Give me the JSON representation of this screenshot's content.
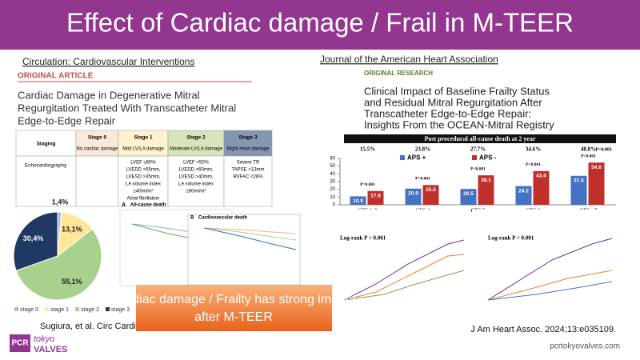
{
  "header": {
    "title": "Effect of Cardiac damage / Frail in M-TEER"
  },
  "left": {
    "journal": "Circulation: Cardiovascular Interventions",
    "tag": "ORIGINAL ARTICLE",
    "article_title": [
      "Cardiac Damage in Degenerative Mitral",
      "Regurgitation Treated With Transcatheter Mitral",
      "Edge-to-Edge Repair"
    ],
    "table": {
      "headers": [
        {
          "title": "Staging"
        },
        {
          "title": "Stage 0",
          "subtitle": "No cardiac damage"
        },
        {
          "title": "Stage 1",
          "subtitle": "Mild LV/LA damage"
        },
        {
          "title": "Stage 2",
          "subtitle": "Moderate LV/LA damage"
        },
        {
          "title": "Stage 3",
          "subtitle": "Right heart damage"
        }
      ],
      "rows": [
        {
          "label": "Echocardiography",
          "cells": {
            "1": [
              "LVEF ≤60%",
              "LVEDD >55mm,",
              "LVESD >35mm,",
              "LA volume index",
              "≥40ml/m²",
              "Atrial fibrillation"
            ],
            "2": [
              "LVEF <50%",
              "LVEDD >60mm,",
              "LVESD >40mm,",
              "LA volume index",
              "≥60ml/m²"
            ],
            "3": [
              "Severe TR",
              "TAPSE <13mm",
              "RVFAC <28%"
            ]
          }
        }
      ]
    },
    "km": {
      "a_letter": "A",
      "a_title": "All-cause death",
      "b_letter": "B",
      "b_title": "Cardiovascular death"
    },
    "citation": "Sugiura, et al. Circ Cardi"
  },
  "chart_data": [
    {
      "type": "pie",
      "categories": [
        "stage 0",
        "stage 1",
        "stage 2",
        "stage 3"
      ],
      "values": [
        1.4,
        13.1,
        55.1,
        30.4
      ],
      "value_labels": [
        "1,4%",
        "13,1%",
        "55,1%",
        "30,4%"
      ],
      "colors": [
        "#9dc3e6",
        "#ffe699",
        "#a9d18e",
        "#1f3864"
      ]
    },
    {
      "type": "bar",
      "title": "Post procedural all-cause death at 2 year",
      "categories": [
        "CFS 1-3",
        "CFS 4",
        "CFS 5",
        "CFS 6",
        "CFS ≥7"
      ],
      "series": [
        {
          "name": "APS +",
          "color": "#4472c4",
          "values": [
            10.9,
            20.9,
            20.5,
            24.2,
            37.5
          ]
        },
        {
          "name": "APS -",
          "color": "#c0302b",
          "values": [
            17.8,
            25.5,
            38.1,
            43.6,
            54.6
          ]
        }
      ],
      "group_labels": [
        "15.5%",
        "23.8%",
        "27.7%",
        "34.6%",
        "48.8%"
      ],
      "overall_p": "P<0.001",
      "p_labels": [
        "P=0.001",
        "P<0.001",
        "P<0.001",
        "P<0.001",
        "P<0.001"
      ],
      "ylim": [
        0,
        60
      ],
      "yticks": [
        0,
        10,
        20,
        30,
        40,
        50,
        60
      ]
    }
  ],
  "right": {
    "journal": "Journal of the American Heart Association",
    "tag": "ORIGINAL RESEARCH",
    "article_title": [
      "Clinical Impact of Baseline Frailty Status",
      "and Residual Mitral Regurgitation After",
      "Transcatheter Edge-to-Edge Repair:",
      "Insights From the OCEAN-Mitral Registry"
    ],
    "km_left": "Log-rank P < 0.001",
    "km_right": "Log-rank P < 0.001",
    "citation": "J Am Heart Assoc. 2024;13:e035109."
  },
  "callout": [
    "Cardiac damage / Frailty has strong impact",
    "after M-TEER"
  ],
  "footer": {
    "logo_pcr": "PCR",
    "logo_tokyo": "tokyo",
    "logo_valves": "VALVES",
    "url": "pcrtokyovalves.com"
  }
}
